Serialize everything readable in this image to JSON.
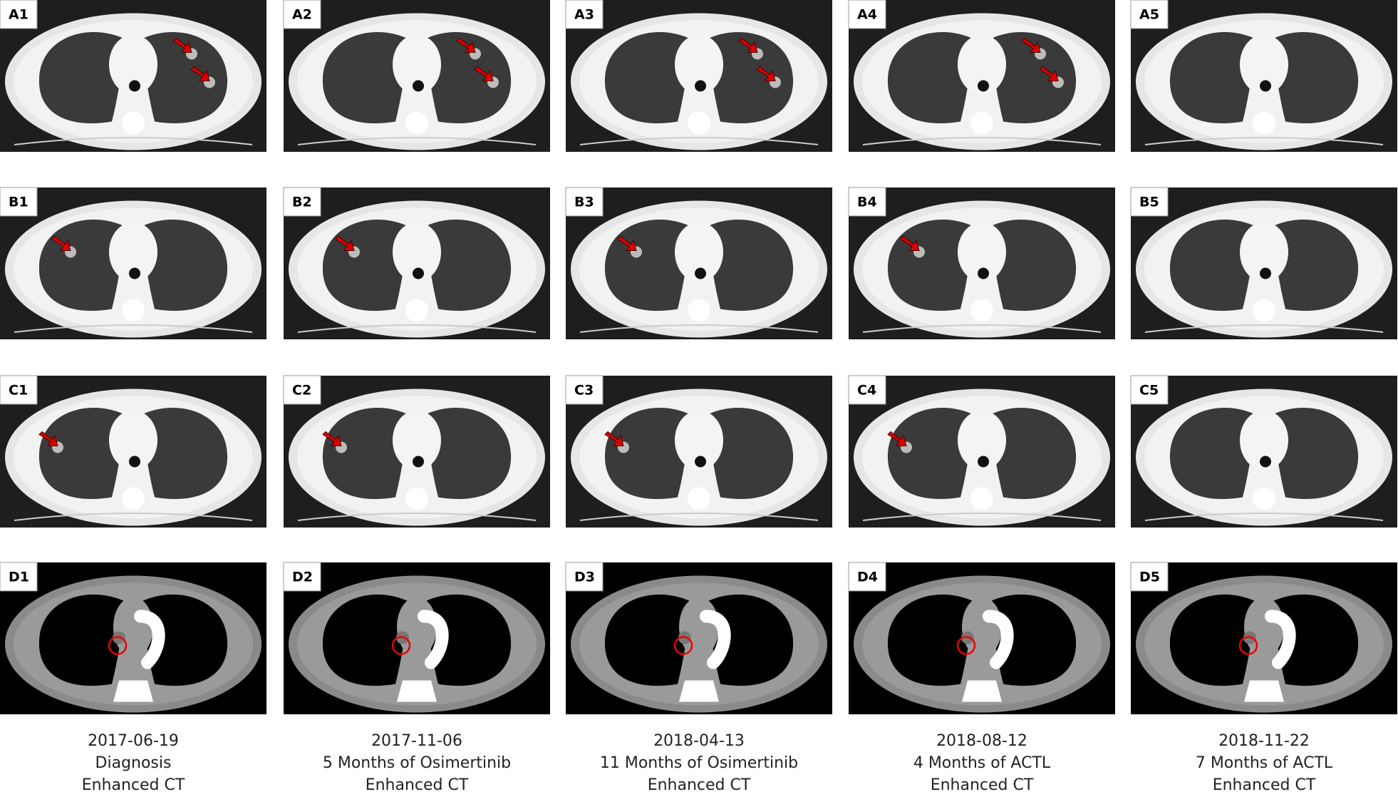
{
  "panels": [
    [
      "A1",
      "A2",
      "A3",
      "A4",
      "A5"
    ],
    [
      "B1",
      "B2",
      "B3",
      "B4",
      "B5"
    ],
    [
      "C1",
      "C2",
      "C3",
      "C4",
      "C5"
    ],
    [
      "D1",
      "D2",
      "D3",
      "D4",
      "D5"
    ]
  ],
  "captions": [
    {
      "date": "2017-06-19",
      "stage": "Diagnosis",
      "modality": "Enhanced CT"
    },
    {
      "date": "2017-11-06",
      "stage": "5 Months of Osimertinib",
      "modality": "Enhanced CT"
    },
    {
      "date": "2018-04-13",
      "stage": "11 Months of Osimertinib",
      "modality": "Enhanced CT"
    },
    {
      "date": "2018-08-12",
      "stage": "4 Months of ACTL",
      "modality": "Enhanced CT"
    },
    {
      "date": "2018-11-22",
      "stage": "7 Months of ACTL",
      "modality": "Enhanced CT"
    }
  ]
}
